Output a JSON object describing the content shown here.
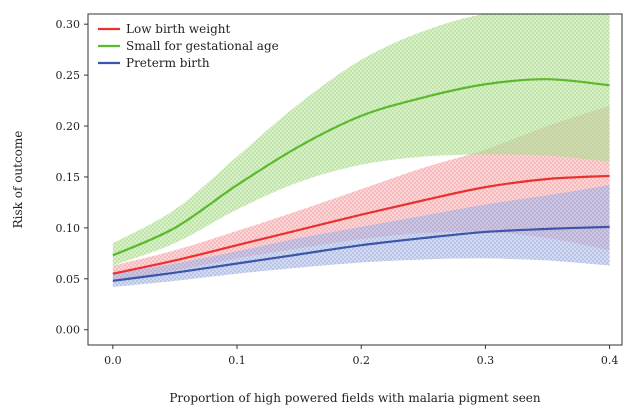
{
  "chart_data": {
    "type": "line",
    "title": "",
    "xlabel": "Proportion of high powered fields with malaria pigment seen",
    "ylabel": "Risk of outcome",
    "xlim": [
      -0.02,
      0.41
    ],
    "ylim": [
      -0.015,
      0.31
    ],
    "xticks": [
      "0.0",
      "0.1",
      "0.2",
      "0.3",
      "0.4"
    ],
    "xtick_values": [
      0.0,
      0.1,
      0.2,
      0.3,
      0.4
    ],
    "yticks": [
      "0.00",
      "0.05",
      "0.10",
      "0.15",
      "0.20",
      "0.25",
      "0.30"
    ],
    "ytick_values": [
      0.0,
      0.05,
      0.1,
      0.15,
      0.2,
      0.25,
      0.3
    ],
    "grid": false,
    "legend_position": "top-left",
    "x": [
      0.0,
      0.05,
      0.1,
      0.15,
      0.2,
      0.25,
      0.3,
      0.35,
      0.4
    ],
    "series": [
      {
        "name": "Low birth weight",
        "color": "#e8322f",
        "band_color": "#f4a3a8",
        "values": [
          0.055,
          0.068,
          0.083,
          0.098,
          0.113,
          0.127,
          0.14,
          0.148,
          0.151
        ],
        "lower": [
          0.048,
          0.058,
          0.07,
          0.08,
          0.089,
          0.095,
          0.096,
          0.09,
          0.078
        ],
        "upper": [
          0.063,
          0.078,
          0.097,
          0.117,
          0.138,
          0.159,
          0.177,
          0.2,
          0.22
        ]
      },
      {
        "name": "Small for gestational age",
        "color": "#5cb82d",
        "band_color": "#a9dc8a",
        "values": [
          0.073,
          0.1,
          0.142,
          0.18,
          0.21,
          0.228,
          0.241,
          0.246,
          0.24
        ],
        "lower": [
          0.063,
          0.085,
          0.118,
          0.145,
          0.162,
          0.17,
          0.172,
          0.171,
          0.165
        ],
        "upper": [
          0.085,
          0.118,
          0.17,
          0.222,
          0.265,
          0.293,
          0.31,
          0.31,
          0.31
        ]
      },
      {
        "name": "Preterm birth",
        "color": "#3b55a8",
        "band_color": "#9fb0e0",
        "values": [
          0.048,
          0.056,
          0.065,
          0.074,
          0.083,
          0.09,
          0.096,
          0.099,
          0.101
        ],
        "lower": [
          0.042,
          0.048,
          0.055,
          0.061,
          0.066,
          0.069,
          0.07,
          0.068,
          0.063
        ],
        "upper": [
          0.055,
          0.065,
          0.077,
          0.09,
          0.101,
          0.112,
          0.123,
          0.132,
          0.142
        ]
      }
    ]
  }
}
